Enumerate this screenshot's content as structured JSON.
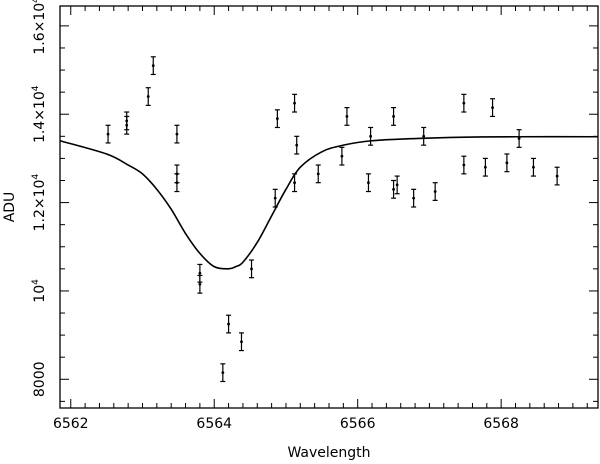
{
  "chart_data": {
    "type": "scatter",
    "xlabel": "Wavelength",
    "ylabel": "ADU",
    "xlim": [
      6561.85,
      6569.35
    ],
    "ylim": [
      7350,
      16450
    ],
    "grid": false,
    "x_ticks": [
      6562,
      6564,
      6566,
      6568
    ],
    "y_ticks": [
      {
        "value": 8000,
        "base": "8000",
        "exp": ""
      },
      {
        "value": 10000,
        "base": "10",
        "exp": "4"
      },
      {
        "value": 12000,
        "base": "1.2×10",
        "exp": "4"
      },
      {
        "value": 14000,
        "base": "1.4×10",
        "exp": "4"
      },
      {
        "value": 16000,
        "base": "1.6×10",
        "exp": "4"
      }
    ],
    "series": [
      {
        "type": "errorbar-scatter",
        "points": [
          {
            "x": 6562.52,
            "y": 13550,
            "err": 200
          },
          {
            "x": 6562.78,
            "y": 13850,
            "err": 200
          },
          {
            "x": 6562.78,
            "y": 13750,
            "err": 200
          },
          {
            "x": 6563.08,
            "y": 14400,
            "err": 200
          },
          {
            "x": 6563.15,
            "y": 15100,
            "err": 200
          },
          {
            "x": 6563.48,
            "y": 13550,
            "err": 200
          },
          {
            "x": 6563.48,
            "y": 12650,
            "err": 200
          },
          {
            "x": 6563.48,
            "y": 12450,
            "err": 200
          },
          {
            "x": 6563.8,
            "y": 10400,
            "err": 200
          },
          {
            "x": 6563.8,
            "y": 10150,
            "err": 200
          },
          {
            "x": 6564.12,
            "y": 8150,
            "err": 200
          },
          {
            "x": 6564.2,
            "y": 9250,
            "err": 200
          },
          {
            "x": 6564.38,
            "y": 8850,
            "err": 200
          },
          {
            "x": 6564.52,
            "y": 10500,
            "err": 200
          },
          {
            "x": 6564.85,
            "y": 12100,
            "err": 200
          },
          {
            "x": 6564.88,
            "y": 13900,
            "err": 200
          },
          {
            "x": 6565.12,
            "y": 12450,
            "err": 200
          },
          {
            "x": 6565.12,
            "y": 14250,
            "err": 200
          },
          {
            "x": 6565.15,
            "y": 13300,
            "err": 200
          },
          {
            "x": 6565.45,
            "y": 12650,
            "err": 200
          },
          {
            "x": 6565.78,
            "y": 13050,
            "err": 200
          },
          {
            "x": 6565.85,
            "y": 13950,
            "err": 200
          },
          {
            "x": 6566.15,
            "y": 12450,
            "err": 200
          },
          {
            "x": 6566.18,
            "y": 13500,
            "err": 200
          },
          {
            "x": 6566.5,
            "y": 13950,
            "err": 200
          },
          {
            "x": 6566.5,
            "y": 12300,
            "err": 200
          },
          {
            "x": 6566.55,
            "y": 12400,
            "err": 200
          },
          {
            "x": 6566.78,
            "y": 12100,
            "err": 200
          },
          {
            "x": 6566.92,
            "y": 13500,
            "err": 200
          },
          {
            "x": 6567.08,
            "y": 12250,
            "err": 200
          },
          {
            "x": 6567.48,
            "y": 12850,
            "err": 200
          },
          {
            "x": 6567.48,
            "y": 14250,
            "err": 200
          },
          {
            "x": 6567.78,
            "y": 12800,
            "err": 200
          },
          {
            "x": 6567.88,
            "y": 14150,
            "err": 200
          },
          {
            "x": 6568.08,
            "y": 12900,
            "err": 200
          },
          {
            "x": 6568.25,
            "y": 13450,
            "err": 200
          },
          {
            "x": 6568.45,
            "y": 12800,
            "err": 200
          },
          {
            "x": 6568.78,
            "y": 12600,
            "err": 200
          }
        ]
      },
      {
        "type": "line",
        "x": [
          6561.85,
          6562.5,
          6562.8,
          6563.0,
          6563.2,
          6563.4,
          6563.6,
          6563.8,
          6564.0,
          6564.2,
          6564.3,
          6564.4,
          6564.6,
          6564.8,
          6565.0,
          6565.2,
          6565.5,
          6565.8,
          6566.2,
          6566.8,
          6567.5,
          6568.2,
          6569.35
        ],
        "y": [
          13400,
          13100,
          12850,
          12650,
          12300,
          11850,
          11300,
          10850,
          10550,
          10500,
          10550,
          10650,
          11100,
          11700,
          12300,
          12800,
          13150,
          13300,
          13400,
          13450,
          13480,
          13490,
          13490
        ]
      }
    ]
  }
}
